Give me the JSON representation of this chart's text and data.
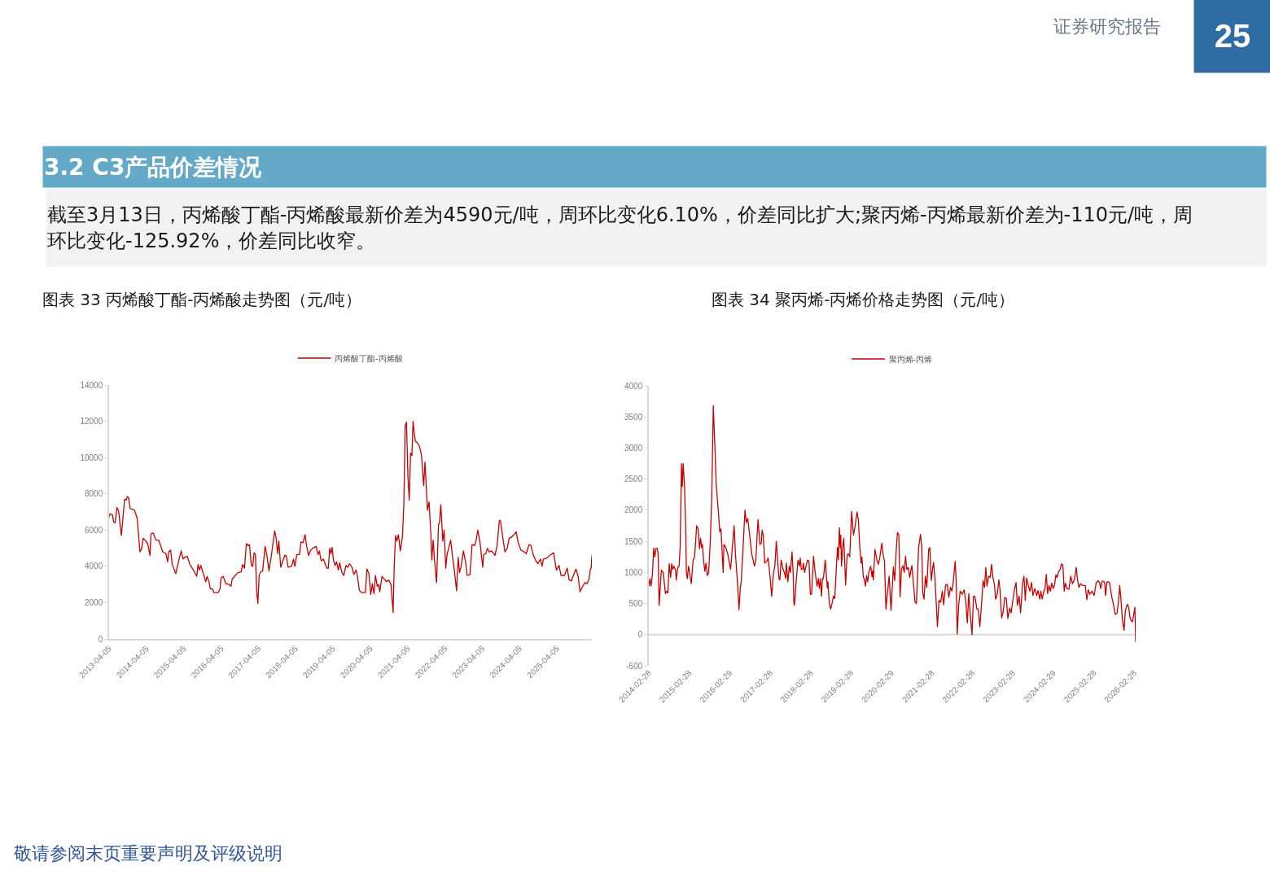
{
  "chart_data": [
    {
      "type": "other",
      "title": "3.2 C3产品价差情况",
      "annotations": [
        "证券研究报告",
        "25",
        "截至3月13日，丙烯酸丁酯-丙烯酸最新价差为4590元/吨，周环比变化6.10%，价差同比扩大;聚丙烯-丙烯最新价差为-110元/吨，周环比变化-125.92%，价差同比收窄。",
        "敬请参阅末页重要声明及评级说明"
      ]
    },
    {
      "type": "line",
      "title": "图表 33 丙烯酸丁酯-丙烯酸走势图（元/吨）",
      "legend": "top",
      "grid": false,
      "xlim": [
        "2013-04-05",
        "2026-03-13"
      ],
      "xticks": [
        "2013-04-05",
        "2014-04-05",
        "2015-04-05",
        "2016-04-05",
        "2017-04-05",
        "2018-04-05",
        "2019-04-05",
        "2020-04-05",
        "2021-04-05",
        "2022-04-05",
        "2023-04-05",
        "2024-04-05",
        "2025-04-05"
      ],
      "ylim": [
        0,
        14000
      ],
      "yticks": [
        0,
        2000,
        4000,
        6000,
        8000,
        10000,
        12000,
        14000
      ],
      "series": [
        {
          "name": "丙烯酸丁酯-丙烯酸",
          "color": "#c80000",
          "x": [
            "2013-04-05",
            "2013-04-16",
            "2013-05-07",
            "2013-05-20",
            "2013-06-03",
            "2013-06-21",
            "2013-07-07",
            "2013-08-03",
            "2013-09-04",
            "2013-09-20",
            "2013-10-01",
            "2013-10-12",
            "2013-10-28",
            "2013-12-09",
            "2014-01-05",
            "2014-02-01",
            "2014-02-17",
            "2014-03-04",
            "2014-03-23",
            "2014-04-18",
            "2014-05-10",
            "2014-05-20",
            "2014-06-10",
            "2014-07-07",
            "2014-08-03",
            "2014-08-16",
            "2014-09-12",
            "2014-10-14",
            "2014-10-30",
            "2014-11-10",
            "2014-11-28",
            "2014-12-14",
            "2014-12-27",
            "2015-01-18",
            "2015-02-19",
            "2015-03-12",
            "2015-03-31",
            "2015-04-13",
            "2015-05-10",
            "2015-06-05",
            "2015-07-15",
            "2015-08-11",
            "2015-08-24",
            "2015-09-06",
            "2015-09-20",
            "2015-10-22",
            "2015-11-07",
            "2015-11-20",
            "2015-12-09",
            "2015-12-22",
            "2016-01-13",
            "2016-01-26",
            "2016-03-07",
            "2016-03-25",
            "2016-04-05",
            "2016-04-26",
            "2016-05-22",
            "2016-06-23",
            "2016-07-10",
            "2016-07-23",
            "2016-08-22",
            "2016-09-17",
            "2016-10-19",
            "2016-11-01",
            "2016-11-20",
            "2016-12-09",
            "2016-12-25",
            "2017-01-08",
            "2017-01-26",
            "2017-02-09",
            "2017-02-22",
            "2017-03-07",
            "2017-03-20",
            "2017-03-31",
            "2017-04-13",
            "2017-04-29",
            "2017-05-17",
            "2017-06-10",
            "2017-06-26",
            "2017-07-18",
            "2017-08-13",
            "2017-09-11",
            "2017-09-25",
            "2017-10-11",
            "2017-10-22",
            "2017-11-10",
            "2017-11-28",
            "2017-12-19",
            "2018-01-02",
            "2018-01-21",
            "2018-02-24",
            "2018-03-15",
            "2018-03-28",
            "2018-04-16",
            "2018-05-12",
            "2018-05-28",
            "2018-06-16",
            "2018-07-07",
            "2018-07-20",
            "2018-08-10",
            "2018-08-26",
            "2018-09-17",
            "2018-10-22",
            "2018-11-10",
            "2018-11-23",
            "2018-12-11",
            "2019-01-02",
            "2019-02-03",
            "2019-02-19",
            "2019-03-04",
            "2019-03-17",
            "2019-03-28",
            "2019-04-10",
            "2019-04-26",
            "2019-05-10",
            "2019-05-28",
            "2019-06-10",
            "2019-07-02",
            "2019-07-20",
            "2019-08-10",
            "2019-08-29",
            "2019-09-14",
            "2019-10-08",
            "2019-10-27",
            "2019-11-17",
            "2019-12-01",
            "2019-12-19",
            "2020-01-10",
            "2020-02-16",
            "2020-03-03",
            "2020-03-22",
            "2020-04-09",
            "2020-04-25",
            "2020-05-11",
            "2020-05-25",
            "2020-06-12",
            "2020-06-25",
            "2020-07-06",
            "2020-07-28",
            "2020-08-18",
            "2020-09-11",
            "2020-10-02",
            "2020-10-24",
            "2020-11-14",
            "2020-11-25",
            "2020-12-08",
            "2020-12-21",
            "2021-01-05",
            "2021-01-23",
            "2021-02-13",
            "2021-02-27",
            "2021-03-12",
            "2021-03-25",
            "2021-04-08",
            "2021-04-21",
            "2021-05-04",
            "2021-05-17",
            "2021-05-28",
            "2021-06-10",
            "2021-06-21",
            "2021-07-10",
            "2021-07-31",
            "2021-08-19",
            "2021-09-09",
            "2021-09-22",
            "2021-10-16",
            "2021-11-01",
            "2021-11-17",
            "2021-11-28",
            "2021-12-11",
            "2021-12-25",
            "2022-01-13",
            "2022-02-01",
            "2022-02-11",
            "2022-02-24",
            "2022-03-15",
            "2022-03-28",
            "2022-04-13",
            "2022-04-26",
            "2022-05-12",
            "2022-05-31",
            "2022-06-18",
            "2022-07-04",
            "2022-07-28",
            "2022-08-13",
            "2022-08-26",
            "2022-09-14",
            "2022-10-03",
            "2022-10-24",
            "2022-11-09",
            "2022-12-06",
            "2022-12-27",
            "2023-01-21",
            "2023-02-03",
            "2023-02-21",
            "2023-03-15",
            "2023-04-10",
            "2023-04-18",
            "2023-05-10",
            "2023-05-26",
            "2023-06-10",
            "2023-07-07",
            "2023-08-08",
            "2023-08-29",
            "2023-09-20",
            "2023-10-01",
            "2023-10-27",
            "2023-11-14",
            "2023-12-06",
            "2023-12-24",
            "2024-01-15",
            "2024-02-10",
            "2024-03-03",
            "2024-03-22",
            "2024-04-17",
            "2024-05-19",
            "2024-06-09",
            "2024-07-06",
            "2024-07-25",
            "2024-08-15",
            "2024-09-16",
            "2024-10-02",
            "2024-10-26",
            "2024-11-11",
            "2024-11-24",
            "2024-12-26",
            "2025-02-05",
            "2025-03-04",
            "2025-03-31",
            "2025-04-26",
            "2025-05-15",
            "2025-06-18",
            "2025-07-15",
            "2025-08-03",
            "2025-08-24",
            "2025-09-14",
            "2025-10-08",
            "2025-10-30",
            "2025-11-17",
            "2025-12-09",
            "2026-01-05",
            "2026-01-26",
            "2026-02-13",
            "2026-02-27",
            "2026-03-06",
            "2026-03-13"
          ],
          "values": [
            6750,
            6900,
            6850,
            6450,
            6400,
            7250,
            7050,
            5700,
            7700,
            7650,
            7850,
            7800,
            7200,
            7100,
            6650,
            4800,
            4950,
            5550,
            5450,
            5250,
            4600,
            5800,
            5850,
            5450,
            5450,
            5250,
            4800,
            4700,
            4250,
            4800,
            4900,
            4100,
            3900,
            3600,
            4400,
            4850,
            4400,
            4500,
            4550,
            4100,
            3750,
            3450,
            4100,
            3800,
            4050,
            3450,
            3150,
            3450,
            3150,
            2750,
            2750,
            2550,
            2550,
            2750,
            3350,
            3450,
            3050,
            3000,
            2900,
            3300,
            3500,
            3650,
            3700,
            4100,
            3900,
            5250,
            5150,
            5200,
            4050,
            4000,
            4750,
            4650,
            2600,
            1950,
            3500,
            3700,
            3750,
            5100,
            4650,
            3750,
            4700,
            5950,
            5600,
            4700,
            5400,
            3950,
            4250,
            4600,
            4600,
            3950,
            4000,
            4400,
            4000,
            4650,
            4650,
            5350,
            5300,
            5750,
            5150,
            4600,
            4850,
            5000,
            5100,
            4650,
            4850,
            4300,
            4400,
            3900,
            3900,
            5000,
            4700,
            5050,
            4350,
            4050,
            4250,
            3800,
            4200,
            3650,
            3500,
            4050,
            3950,
            4150,
            3950,
            3550,
            3800,
            3450,
            2700,
            2550,
            2550,
            3850,
            3600,
            2450,
            3050,
            2500,
            3500,
            2900,
            3000,
            2600,
            3450,
            3300,
            3150,
            3250,
            3000,
            1450,
            4100,
            5700,
            5400,
            5750,
            4850,
            5600,
            7400,
            11750,
            11950,
            8900,
            7650,
            10250,
            10100,
            12000,
            11250,
            10900,
            10800,
            10600,
            10100,
            8450,
            9750,
            7100,
            7550,
            5900,
            4350,
            5450,
            4300,
            3100,
            6300,
            6400,
            7400,
            5400,
            6000,
            3900,
            4650,
            5000,
            5450,
            4550,
            3900,
            2650,
            4500,
            3650,
            4100,
            4850,
            4250,
            3500,
            3550,
            5200,
            5150,
            5400,
            6000,
            5300,
            3950,
            4650,
            4700,
            5000,
            4800,
            4850,
            4600,
            5150,
            6550,
            6500,
            5450,
            4800,
            5000,
            5550,
            5600,
            5750,
            5900,
            5300,
            4900,
            4800,
            4700,
            5200,
            5150,
            4650,
            4250,
            4150,
            4400,
            4000,
            4400,
            4450,
            4650,
            4750,
            3800,
            4050,
            3500,
            3500,
            3900,
            3250,
            3200,
            3500,
            3850,
            3450,
            2600,
            2850,
            3100,
            3050,
            3300,
            3850,
            3900,
            4590
          ]
        }
      ]
    },
    {
      "type": "line",
      "title": "图表 34 聚丙烯-丙烯价格走势图（元/吨）",
      "legend": "top",
      "grid": false,
      "xlim": [
        "2014-02-28",
        "2026-03-13"
      ],
      "xticks": [
        "2014-02-28",
        "2015-02-28",
        "2016-02-29",
        "2017-02-28",
        "2018-02-28",
        "2019-02-28",
        "2020-02-29",
        "2021-02-28",
        "2022-02-28",
        "2023-02-28",
        "2024-02-29",
        "2025-02-28",
        "2026-02-28"
      ],
      "ylim": [
        -500,
        4000
      ],
      "yticks": [
        -500,
        0,
        500,
        1000,
        1500,
        2000,
        2500,
        3000,
        3500,
        4000
      ],
      "ref_lines": [
        {
          "axis": "y",
          "value": 0,
          "color": "#d9d9d9"
        }
      ],
      "series": [
        {
          "name": "聚丙烯-丙烯",
          "color": "#c80000",
          "x": [
            "2014-02-28",
            "2014-03-10",
            "2014-03-20",
            "2014-04-01",
            "2014-04-13",
            "2014-04-23",
            "2014-05-03",
            "2014-05-15",
            "2014-05-23",
            "2014-06-01",
            "2014-06-21",
            "2014-07-08",
            "2014-07-28",
            "2014-08-09",
            "2014-08-19",
            "2014-08-31",
            "2014-09-13",
            "2014-09-22",
            "2014-10-02",
            "2014-10-12",
            "2014-10-27",
            "2014-11-03",
            "2014-11-16",
            "2014-11-28",
            "2014-12-08",
            "2014-12-13",
            "2014-12-20",
            "2014-12-27",
            "2015-01-04",
            "2015-01-16",
            "2015-01-26",
            "2015-02-02",
            "2015-02-10",
            "2015-02-22",
            "2015-03-11",
            "2015-03-18",
            "2015-04-04",
            "2015-04-17",
            "2015-05-06",
            "2015-05-19",
            "2015-05-31",
            "2015-06-10",
            "2015-06-20",
            "2015-06-27",
            "2015-07-07",
            "2015-07-19",
            "2015-07-29",
            "2015-08-10",
            "2015-08-22",
            "2015-09-06",
            "2015-09-19",
            "2015-10-03",
            "2015-10-18",
            "2015-10-30",
            "2015-11-19",
            "2015-12-01",
            "2015-12-11",
            "2015-12-31",
            "2016-01-07",
            "2016-01-24",
            "2016-02-10",
            "2016-03-07",
            "2016-04-08",
            "2016-04-20",
            "2016-05-10",
            "2016-05-22",
            "2016-06-03",
            "2016-06-11",
            "2016-06-25",
            "2016-07-15",
            "2016-07-27",
            "2016-08-09",
            "2016-09-02",
            "2016-09-14",
            "2016-10-09",
            "2016-10-21",
            "2016-11-02",
            "2016-11-10",
            "2016-11-27",
            "2016-12-09",
            "2016-12-17",
            "2016-12-27",
            "2017-01-10",
            "2017-01-28",
            "2017-02-09",
            "2017-02-28",
            "2017-03-13",
            "2017-03-30",
            "2017-04-11",
            "2017-04-24",
            "2017-05-06",
            "2017-05-18",
            "2017-05-26",
            "2017-06-07",
            "2017-06-24",
            "2017-07-06",
            "2017-07-18",
            "2017-07-23",
            "2017-08-07",
            "2017-08-19",
            "2017-08-29",
            "2017-09-13",
            "2017-09-23",
            "2017-09-30",
            "2017-10-05",
            "2017-10-20",
            "2017-11-06",
            "2017-11-19",
            "2017-11-26",
            "2017-12-06",
            "2017-12-18",
            "2017-12-25",
            "2018-01-04",
            "2018-01-31",
            "2018-02-13",
            "2018-02-25",
            "2018-03-09",
            "2018-03-26",
            "2018-04-10",
            "2018-04-27",
            "2018-05-09",
            "2018-05-17",
            "2018-05-27",
            "2018-06-05",
            "2018-06-15",
            "2018-06-23",
            "2018-07-10",
            "2018-07-29",
            "2018-08-03",
            "2018-08-16",
            "2018-08-28",
            "2018-09-09",
            "2018-09-22",
            "2018-10-04",
            "2018-10-16",
            "2018-10-28",
            "2018-11-05",
            "2018-11-15",
            "2018-11-22",
            "2018-11-27",
            "2018-12-04",
            "2018-12-14",
            "2018-12-24",
            "2019-01-10",
            "2019-01-23",
            "2019-02-04",
            "2019-02-16",
            "2019-03-05",
            "2019-03-22",
            "2019-04-06",
            "2019-04-23",
            "2019-05-05",
            "2019-05-18",
            "2019-05-30",
            "2019-06-06",
            "2019-06-19",
            "2019-06-26",
            "2019-07-08",
            "2019-07-18",
            "2019-07-28",
            "2019-08-07",
            "2019-08-24",
            "2019-09-05",
            "2019-09-10",
            "2019-09-17",
            "2019-10-02",
            "2019-10-19",
            "2019-11-01",
            "2019-11-13",
            "2019-12-03",
            "2019-12-12",
            "2019-12-27",
            "2020-01-09",
            "2020-01-21",
            "2020-02-07",
            "2020-02-24",
            "2020-03-16",
            "2020-03-28",
            "2020-04-09",
            "2020-04-22",
            "2020-05-04",
            "2020-05-16",
            "2020-05-28",
            "2020-06-10",
            "2020-06-22",
            "2020-07-04",
            "2020-07-16",
            "2020-07-29",
            "2020-08-10",
            "2020-08-30",
            "2020-09-11",
            "2020-09-28",
            "2020-10-10",
            "2020-10-30",
            "2020-11-16",
            "2020-11-28",
            "2020-12-06",
            "2020-12-18",
            "2020-12-30",
            "2021-01-12",
            "2021-01-29",
            "2021-02-08",
            "2021-02-22",
            "2021-03-04",
            "2021-03-14",
            "2021-03-27",
            "2021-04-18",
            "2021-05-02",
            "2021-05-17",
            "2021-06-01",
            "2021-06-13",
            "2021-06-30",
            "2021-07-15",
            "2021-07-30",
            "2021-08-14",
            "2021-08-26",
            "2021-09-07",
            "2021-09-25",
            "2021-10-04",
            "2021-10-14",
            "2021-10-27",
            "2021-11-10",
            "2021-11-28",
            "2021-12-15",
            "2021-12-30",
            "2022-01-13",
            "2022-01-26",
            "2022-02-09",
            "2022-02-24",
            "2022-03-10",
            "2022-03-23",
            "2022-04-09",
            "2022-04-21",
            "2022-05-06",
            "2022-05-21",
            "2022-06-04",
            "2022-06-17",
            "2022-06-29",
            "2022-07-09",
            "2022-07-24",
            "2022-08-07",
            "2022-08-20",
            "2022-09-01",
            "2022-09-16",
            "2022-09-25",
            "2022-10-10",
            "2022-10-25",
            "2022-11-04",
            "2022-11-19",
            "2022-12-01",
            "2022-12-18",
            "2022-12-31",
            "2023-01-14",
            "2023-01-31",
            "2023-02-13",
            "2023-03-01",
            "2023-03-14",
            "2023-03-29",
            "2023-04-10",
            "2023-04-25",
            "2023-05-09",
            "2023-05-27",
            "2023-06-08",
            "2023-06-20",
            "2023-07-02",
            "2023-07-17",
            "2023-08-01",
            "2023-08-16",
            "2023-08-28",
            "2023-09-14",
            "2023-10-01",
            "2023-10-14",
            "2023-10-29",
            "2023-11-07",
            "2023-11-20",
            "2023-12-04",
            "2023-12-14",
            "2023-12-27",
            "2024-01-08",
            "2024-01-20",
            "2024-02-02",
            "2024-02-14",
            "2024-02-26",
            "2024-03-10",
            "2024-03-22",
            "2024-04-03",
            "2024-04-16",
            "2024-04-30",
            "2024-05-13",
            "2024-05-25",
            "2024-06-06",
            "2024-06-16",
            "2024-07-01",
            "2024-07-18",
            "2024-08-04",
            "2024-08-19",
            "2024-09-05",
            "2024-09-22",
            "2024-10-05",
            "2024-10-17",
            "2024-11-01",
            "2024-11-18",
            "2024-12-13",
            "2024-12-27",
            "2025-01-09",
            "2025-01-23",
            "2025-02-12",
            "2025-03-03",
            "2025-03-21",
            "2025-04-07",
            "2025-04-22",
            "2025-05-01",
            "2025-05-14",
            "2025-05-26",
            "2025-06-07",
            "2025-06-14",
            "2025-06-27",
            "2025-07-09",
            "2025-07-21",
            "2025-08-07",
            "2025-08-27",
            "2025-09-08",
            "2025-09-25",
            "2025-10-10",
            "2025-10-20",
            "2025-11-01",
            "2025-11-13",
            "2025-11-28",
            "2025-12-10",
            "2025-12-28",
            "2026-01-09",
            "2026-01-21",
            "2026-02-02",
            "2026-02-13",
            "2026-03-06",
            "2026-03-13"
          ],
          "values": [
            780,
            900,
            780,
            960,
            1390,
            1250,
            1380,
            1390,
            1300,
            470,
            1040,
            1000,
            660,
            700,
            670,
            1140,
            920,
            1140,
            1050,
            1100,
            1040,
            880,
            1080,
            1100,
            1400,
            2000,
            2750,
            2380,
            2750,
            2400,
            1800,
            1000,
            900,
            1100,
            900,
            820,
            1200,
            1250,
            1750,
            1700,
            1380,
            1550,
            1400,
            1450,
            1200,
            1020,
            1150,
            950,
            1000,
            1500,
            2200,
            3680,
            3000,
            2400,
            1950,
            1650,
            1700,
            1000,
            1450,
            1400,
            1300,
            1050,
            1750,
            1300,
            800,
            400,
            750,
            850,
            1300,
            2000,
            1800,
            1870,
            1500,
            1300,
            1100,
            1200,
            1600,
            1850,
            1450,
            1470,
            1680,
            1600,
            1150,
            1180,
            1230,
            900,
            620,
            1000,
            1100,
            1500,
            1200,
            900,
            880,
            1200,
            1050,
            1000,
            900,
            1150,
            850,
            1100,
            1000,
            1330,
            1000,
            500,
            470,
            850,
            1200,
            1100,
            1230,
            1050,
            1050,
            1150,
            1000,
            1200,
            1180,
            650,
            650,
            1260,
            1000,
            780,
            900,
            750,
            900,
            620,
            900,
            900,
            1200,
            750,
            850,
            500,
            410,
            500,
            620,
            580,
            1000,
            1400,
            1200,
            1720,
            1400,
            1600,
            1100,
            1400,
            1550,
            800,
            1280,
            1300,
            1250,
            1980,
            1600,
            1750,
            1970,
            1850,
            1400,
            1150,
            1250,
            920,
            900,
            780,
            950,
            850,
            1000,
            1100,
            930,
            1030,
            880,
            1370,
            1200,
            1130,
            1220,
            1470,
            1310,
            1180,
            410,
            650,
            940,
            390,
            1090,
            870,
            1310,
            1640,
            1610,
            610,
            1050,
            1110,
            1000,
            1260,
            1050,
            1080,
            920,
            1110,
            870,
            520,
            500,
            1400,
            1610,
            1400,
            680,
            570,
            940,
            760,
            1370,
            1400,
            870,
            1050,
            1160,
            890,
            130,
            550,
            520,
            700,
            480,
            790,
            810,
            600,
            760,
            700,
            830,
            1180,
            870,
            10,
            480,
            700,
            650,
            720,
            520,
            190,
            660,
            310,
            0,
            620,
            610,
            410,
            410,
            130,
            480,
            870,
            760,
            1080,
            780,
            940,
            920,
            1130,
            920,
            790,
            570,
            650,
            880,
            720,
            270,
            350,
            600,
            580,
            260,
            430,
            350,
            570,
            720,
            840,
            470,
            620,
            350,
            830,
            940,
            550,
            910,
            790,
            700,
            840,
            630,
            740,
            630,
            710,
            570,
            700,
            570,
            700,
            720,
            970,
            660,
            790,
            700,
            830,
            740,
            790,
            960,
            920,
            1010,
            1050,
            1140,
            1110,
            700,
            830,
            740,
            730,
            940,
            820,
            880,
            1080,
            870,
            760,
            820,
            790,
            790,
            560,
            720,
            650,
            700,
            630,
            830,
            870,
            830,
            740,
            860,
            860,
            830,
            630,
            850,
            850,
            830,
            630,
            460,
            330,
            340,
            550,
            790,
            550,
            240,
            70,
            390,
            490,
            440,
            270,
            220,
            210,
            440,
            -110
          ]
        }
      ]
    }
  ]
}
